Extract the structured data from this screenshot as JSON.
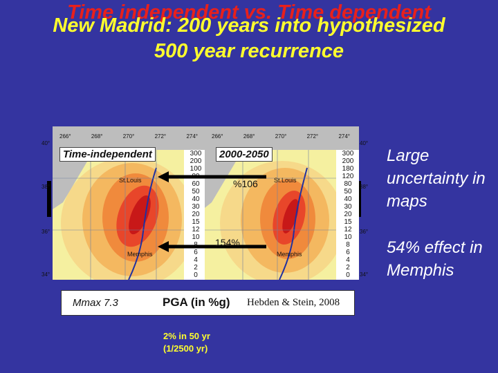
{
  "title": {
    "line_a": "Time independent vs. Time dependent",
    "line_b": "New Madrid: 200 years into hypothesized",
    "line_c": "500 year recurrence"
  },
  "map_left": {
    "panel_label": "Time-independent",
    "lon_ticks": [
      "266°",
      "268°",
      "270°",
      "272°",
      "274°"
    ],
    "lat_ticks": [
      "40°",
      "38°",
      "36°",
      "34°"
    ],
    "city_north": "St.Louis",
    "city_south": "Memphis",
    "legend_values": [
      "300",
      "200",
      "100",
      "80",
      "60",
      "50",
      "40",
      "30",
      "20",
      "15",
      "12",
      "10",
      "8",
      "6",
      "4",
      "2",
      "0"
    ]
  },
  "map_right": {
    "panel_label": "2000-2050",
    "lon_ticks": [
      "266°",
      "268°",
      "270°",
      "272°",
      "274°"
    ],
    "lat_ticks": [
      "40°",
      "38°",
      "36°",
      "34°"
    ],
    "city_north": "St.Louis",
    "city_south": "Memphis",
    "legend_values": [
      "300",
      "200",
      "180",
      "120",
      "80",
      "50",
      "40",
      "30",
      "20",
      "15",
      "12",
      "10",
      "8",
      "6",
      "4",
      "2",
      "0"
    ]
  },
  "labels": {
    "pct_106": "%106",
    "pct_154": "154%"
  },
  "scale_strip": {
    "mmax": "Mmax 7.3",
    "pga": "PGA (in %g)",
    "credit": "Hebden & Stein, 2008"
  },
  "side_notes": {
    "note_1": "Large uncertainty in maps",
    "note_2": "54% effect in Memphis"
  },
  "footnote": {
    "line_1": "2% in 50 yr",
    "line_2": "(1/2500 yr)"
  },
  "colors": {
    "background": "#3434a0",
    "title_red": "#e8201c",
    "title_yellow": "#ffff2e"
  }
}
